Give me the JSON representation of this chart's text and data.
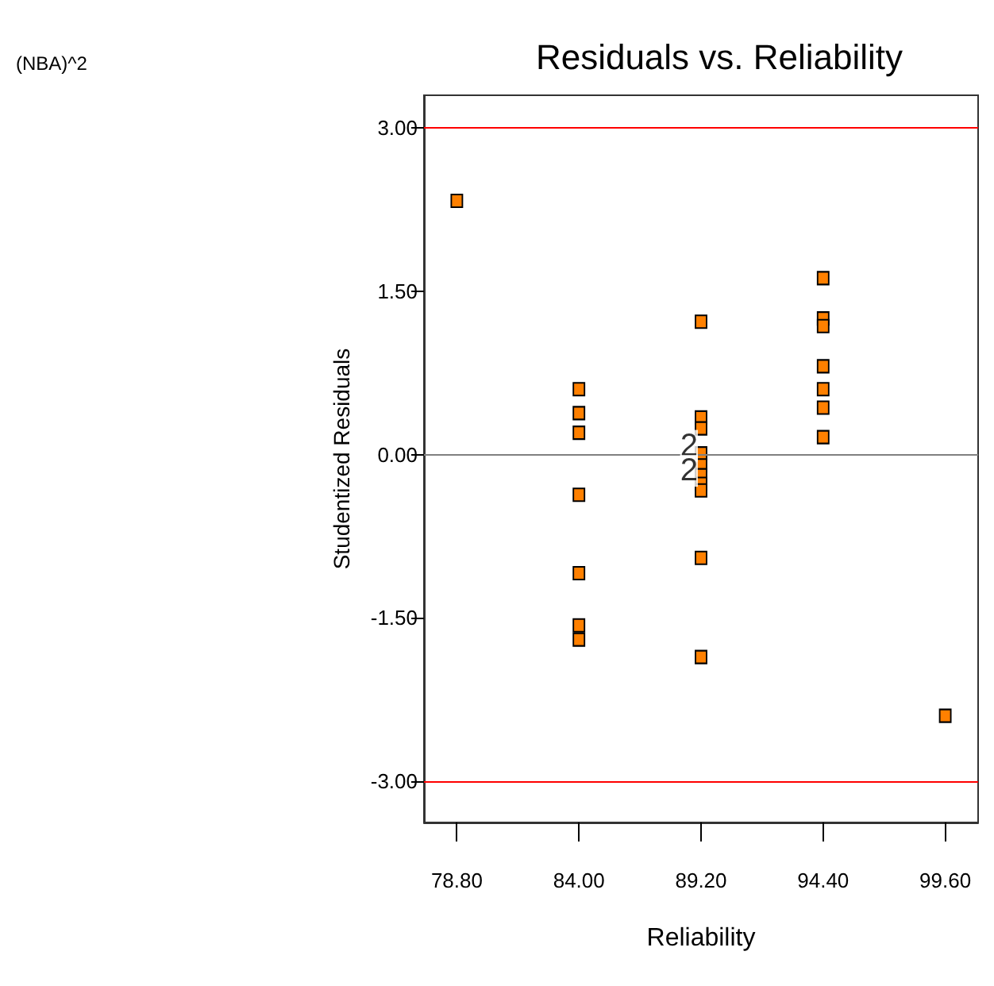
{
  "chart_data": {
    "type": "scatter",
    "title": "Residuals vs. Reliability",
    "xlabel": "Reliability",
    "ylabel": "Studentized Residuals",
    "annotations": [
      "(NBA)^2",
      {
        "text": "2",
        "x": 89.2,
        "y": 0.08
      },
      {
        "text": "2",
        "x": 89.2,
        "y": -0.15
      }
    ],
    "x": [
      78.8,
      84,
      84,
      84,
      84,
      84,
      84,
      84,
      89.2,
      89.2,
      89.2,
      89.2,
      89.2,
      89.2,
      89.2,
      89.2,
      89.2,
      89.2,
      94.4,
      94.4,
      94.4,
      94.4,
      94.4,
      94.4,
      94.4,
      99.6
    ],
    "series": [
      {
        "color": "#ff8000",
        "values": [
          2.33,
          0.6,
          0.38,
          0.2,
          -0.37,
          -1.09,
          -1.57,
          -1.7,
          1.22,
          0.34,
          0.24,
          0.01,
          -0.1,
          -0.19,
          -0.27,
          -0.33,
          -0.95,
          -1.86,
          1.62,
          1.25,
          1.18,
          0.81,
          0.6,
          0.43,
          0.16,
          -2.4
        ]
      }
    ],
    "marker": "square",
    "grid": false,
    "xlim": [
      77.4,
      101
    ],
    "ylim": [
      -3.38,
      3.3
    ],
    "xticks": [
      {
        "value": 78.8,
        "label": "78.80"
      },
      {
        "value": 84,
        "label": "84.00"
      },
      {
        "value": 89.2,
        "label": "89.20"
      },
      {
        "value": 94.4,
        "label": "94.40"
      },
      {
        "value": 99.6,
        "label": "99.60"
      }
    ],
    "yticks": [
      {
        "value": -3,
        "label": "-3.00"
      },
      {
        "value": -1.5,
        "label": "-1.50"
      },
      {
        "value": 0,
        "label": "0.00"
      },
      {
        "value": 1.5,
        "label": "1.50"
      },
      {
        "value": 3,
        "label": "3.00"
      }
    ],
    "ref_lines": [
      {
        "axis": "y",
        "value": 3,
        "label": null,
        "color": "#ff0000"
      },
      {
        "axis": "y",
        "value": 0,
        "label": null,
        "color": "#808080"
      },
      {
        "axis": "y",
        "value": -3,
        "label": null,
        "color": "#ff0000"
      }
    ]
  }
}
